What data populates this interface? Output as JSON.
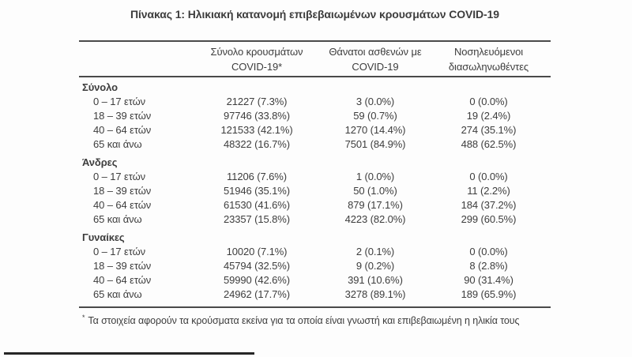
{
  "title": "Πίνακας 1: Ηλικιακή κατανομή επιβεβαιωμένων κρουσμάτων COVID-19",
  "table": {
    "header": {
      "cases_line1": "Σύνολο κρουσμάτων",
      "cases_line2": "COVID-19*",
      "deaths_line1": "Θάνατοι ασθενών με",
      "deaths_line2": "COVID-19",
      "intubated_line1": "Νοσηλευόμενοι",
      "intubated_line2": "διασωληνωθέντες"
    },
    "sections": [
      {
        "label": "Σύνολο",
        "rows": [
          {
            "label": "0 – 17 ετών",
            "cases": "21227 (7.3%)",
            "deaths": "3 (0.0%)",
            "intubated": "0 (0.0%)"
          },
          {
            "label": "18 – 39 ετών",
            "cases": "97746 (33.8%)",
            "deaths": "59 (0.7%)",
            "intubated": "19 (2.4%)"
          },
          {
            "label": "40 – 64 ετών",
            "cases": "121533 (42.1%)",
            "deaths": "1270 (14.4%)",
            "intubated": "274 (35.1%)"
          },
          {
            "label": "65 και άνω",
            "cases": "48322 (16.7%)",
            "deaths": "7501 (84.9%)",
            "intubated": "488 (62.5%)"
          }
        ]
      },
      {
        "label": "Άνδρες",
        "rows": [
          {
            "label": "0 – 17 ετών",
            "cases": "11206 (7.6%)",
            "deaths": "1 (0.0%)",
            "intubated": "0 (0.0%)"
          },
          {
            "label": "18 – 39 ετών",
            "cases": "51946 (35.1%)",
            "deaths": "50 (1.0%)",
            "intubated": "11 (2.2%)"
          },
          {
            "label": "40 – 64 ετών",
            "cases": "61530 (41.6%)",
            "deaths": "879 (17.1%)",
            "intubated": "184 (37.2%)"
          },
          {
            "label": "65 και άνω",
            "cases": "23357 (15.8%)",
            "deaths": "4223 (82.0%)",
            "intubated": "299 (60.5%)"
          }
        ]
      },
      {
        "label": "Γυναίκες",
        "rows": [
          {
            "label": "0 – 17 ετών",
            "cases": "10020 (7.1%)",
            "deaths": "2 (0.1%)",
            "intubated": "0 (0.0%)"
          },
          {
            "label": "18 – 39 ετών",
            "cases": "45794 (32.5%)",
            "deaths": "9 (0.2%)",
            "intubated": "8 (2.8%)"
          },
          {
            "label": "40 – 64 ετών",
            "cases": "59990 (42.6%)",
            "deaths": "391 (10.6%)",
            "intubated": "90 (31.4%)"
          },
          {
            "label": "65 και άνω",
            "cases": "24962 (17.7%)",
            "deaths": "3278 (89.1%)",
            "intubated": "189 (65.9%)"
          }
        ]
      }
    ],
    "footnote_marker": "*",
    "footnote_text": "Τα στοιχεία αφορούν τα κρούσματα εκείνα για τα οποία είναι γνωστή και επιβεβαιωμένη η ηλικία τους"
  },
  "colors": {
    "text": "#3d3d3d",
    "rule": "#4a4a4a",
    "bottom_bar": "#262626",
    "background": "#fdfdfd"
  }
}
